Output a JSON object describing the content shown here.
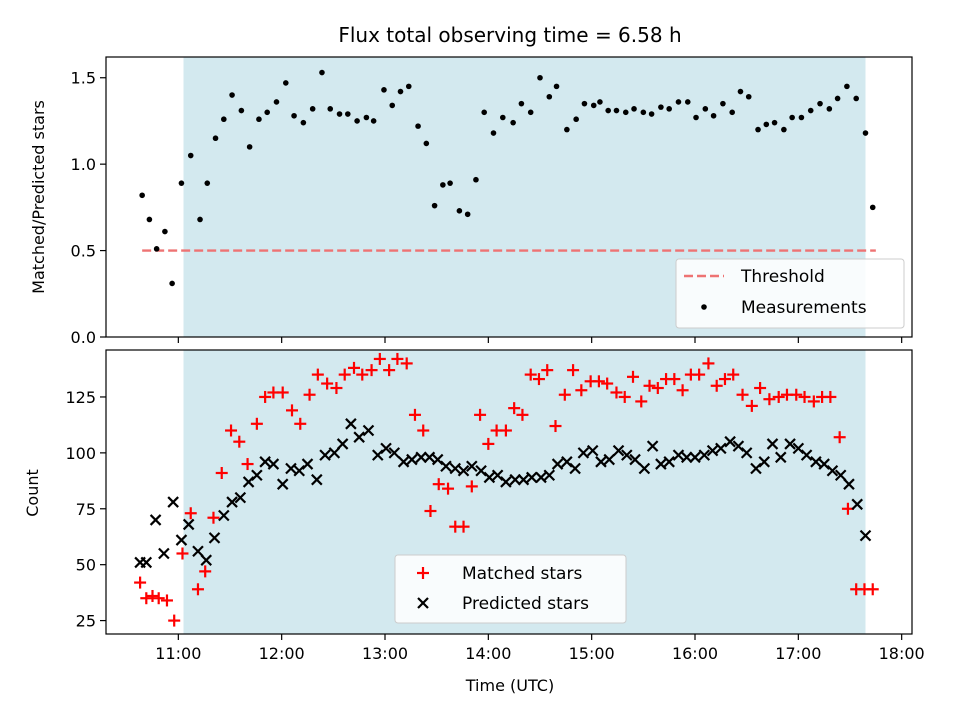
{
  "chart_data": [
    {
      "type": "scatter",
      "title": "Flux total observing time = 6.58 h",
      "xlabel": "",
      "ylabel": "Matched/Predicted stars",
      "x_unit": "hours UTC",
      "xlim": [
        10.3,
        18.1
      ],
      "ylim": [
        0,
        1.62
      ],
      "yticks": [
        0.0,
        0.5,
        1.0,
        1.5
      ],
      "ytick_labels": [
        "0.0",
        "0.5",
        "1.0",
        "1.5"
      ],
      "shaded_span": [
        11.05,
        17.65
      ],
      "shade_color": "#d3e9ef",
      "threshold": {
        "name": "Threshold",
        "y": 0.5,
        "x_range": [
          10.65,
          17.75
        ],
        "color": "#ee7373",
        "style": "dashed"
      },
      "legend": {
        "position": "lower-right",
        "entries": [
          "Threshold",
          "Measurements"
        ]
      },
      "series": [
        {
          "name": "Measurements",
          "marker": "dot",
          "color": "#000000",
          "x": [
            10.65,
            10.72,
            10.79,
            10.87,
            10.94,
            11.03,
            11.12,
            11.21,
            11.28,
            11.36,
            11.44,
            11.52,
            11.61,
            11.69,
            11.78,
            11.86,
            11.95,
            12.04,
            12.12,
            12.21,
            12.3,
            12.39,
            12.47,
            12.56,
            12.64,
            12.73,
            12.82,
            12.89,
            12.99,
            13.07,
            13.15,
            13.23,
            13.32,
            13.4,
            13.48,
            13.56,
            13.63,
            13.72,
            13.8,
            13.88,
            13.96,
            14.05,
            14.14,
            14.24,
            14.32,
            14.41,
            14.5,
            14.59,
            14.66,
            14.76,
            14.85,
            14.93,
            15.02,
            15.08,
            15.16,
            15.24,
            15.33,
            15.41,
            15.5,
            15.58,
            15.67,
            15.75,
            15.84,
            15.93,
            16.01,
            16.1,
            16.18,
            16.27,
            16.36,
            16.44,
            16.52,
            16.61,
            16.69,
            16.77,
            16.86,
            16.94,
            17.03,
            17.12,
            17.21,
            17.3,
            17.38,
            17.47,
            17.56,
            17.65,
            17.72
          ],
          "y": [
            0.82,
            0.68,
            0.51,
            0.61,
            0.31,
            0.89,
            1.05,
            0.68,
            0.89,
            1.15,
            1.26,
            1.4,
            1.31,
            1.1,
            1.26,
            1.3,
            1.36,
            1.47,
            1.28,
            1.24,
            1.32,
            1.53,
            1.32,
            1.29,
            1.29,
            1.25,
            1.27,
            1.25,
            1.43,
            1.34,
            1.42,
            1.45,
            1.22,
            1.12,
            0.76,
            0.88,
            0.89,
            0.73,
            0.71,
            0.91,
            1.3,
            1.18,
            1.27,
            1.24,
            1.35,
            1.3,
            1.5,
            1.39,
            1.45,
            1.2,
            1.26,
            1.35,
            1.34,
            1.36,
            1.31,
            1.31,
            1.3,
            1.32,
            1.3,
            1.29,
            1.33,
            1.32,
            1.36,
            1.36,
            1.27,
            1.32,
            1.28,
            1.35,
            1.3,
            1.42,
            1.39,
            1.2,
            1.23,
            1.24,
            1.2,
            1.27,
            1.27,
            1.31,
            1.35,
            1.32,
            1.38,
            1.45,
            1.38,
            1.18,
            0.75
          ]
        }
      ]
    },
    {
      "type": "scatter",
      "title": "",
      "xlabel": "Time (UTC)",
      "ylabel": "Count",
      "x_unit": "hours UTC",
      "xlim": [
        10.3,
        18.1
      ],
      "ylim": [
        19,
        146
      ],
      "yticks": [
        25,
        50,
        75,
        100,
        125
      ],
      "ytick_labels": [
        "25",
        "50",
        "75",
        "100",
        "125"
      ],
      "xticks": [
        11,
        12,
        13,
        14,
        15,
        16,
        17,
        18
      ],
      "xtick_labels": [
        "11:00",
        "12:00",
        "13:00",
        "14:00",
        "15:00",
        "16:00",
        "17:00",
        "18:00"
      ],
      "shaded_span": [
        11.05,
        17.65
      ],
      "shade_color": "#d3e9ef",
      "legend": {
        "position": "lower-center",
        "entries": [
          "Matched stars",
          "Predicted stars"
        ]
      },
      "series": [
        {
          "name": "Matched stars",
          "marker": "plus",
          "color": "#ff0000",
          "x": [
            10.63,
            10.69,
            10.75,
            10.81,
            10.89,
            10.96,
            11.04,
            11.12,
            11.19,
            11.26,
            11.34,
            11.42,
            11.51,
            11.59,
            11.67,
            11.76,
            11.84,
            11.92,
            12.01,
            12.1,
            12.18,
            12.27,
            12.35,
            12.44,
            12.53,
            12.61,
            12.7,
            12.78,
            12.87,
            12.95,
            13.04,
            13.12,
            13.21,
            13.29,
            13.37,
            13.44,
            13.52,
            13.61,
            13.68,
            13.76,
            13.84,
            13.92,
            14.0,
            14.08,
            14.17,
            14.25,
            14.33,
            14.41,
            14.49,
            14.57,
            14.65,
            14.74,
            14.82,
            14.9,
            14.99,
            15.07,
            15.15,
            15.24,
            15.32,
            15.4,
            15.48,
            15.56,
            15.64,
            15.72,
            15.8,
            15.88,
            15.96,
            16.04,
            16.13,
            16.21,
            16.29,
            16.37,
            16.46,
            16.55,
            16.63,
            16.72,
            16.81,
            16.89,
            16.98,
            17.06,
            17.15,
            17.23,
            17.31,
            17.4,
            17.48,
            17.56,
            17.64,
            17.72
          ],
          "y": [
            42,
            35,
            36,
            35,
            34,
            25,
            55,
            73,
            39,
            47,
            71,
            91,
            110,
            105,
            95,
            113,
            125,
            127,
            127,
            119,
            113,
            126,
            135,
            131,
            129,
            135,
            138,
            135,
            137,
            142,
            137,
            142,
            140,
            117,
            110,
            74,
            86,
            84,
            67,
            67,
            85,
            117,
            104,
            110,
            110,
            120,
            117,
            135,
            133,
            137,
            112,
            126,
            137,
            128,
            132,
            132,
            131,
            127,
            125,
            134,
            123,
            130,
            129,
            133,
            133,
            128,
            135,
            135,
            140,
            130,
            133,
            135,
            126,
            121,
            129,
            124,
            125,
            126,
            126,
            125,
            123,
            125,
            125,
            107,
            75,
            39,
            39,
            39
          ],
          "x_trim": 17.72
        },
        {
          "name": "Predicted stars",
          "marker": "x",
          "color": "#000000",
          "x": [
            10.63,
            10.69,
            10.78,
            10.86,
            10.95,
            11.03,
            11.1,
            11.19,
            11.27,
            11.35,
            11.44,
            11.52,
            11.6,
            11.68,
            11.76,
            11.84,
            11.92,
            12.01,
            12.09,
            12.17,
            12.25,
            12.34,
            12.42,
            12.51,
            12.59,
            12.67,
            12.75,
            12.84,
            12.93,
            13.01,
            13.09,
            13.18,
            13.26,
            13.35,
            13.43,
            13.51,
            13.59,
            13.68,
            13.76,
            13.84,
            13.93,
            14.01,
            14.09,
            14.17,
            14.26,
            14.34,
            14.42,
            14.51,
            14.59,
            14.67,
            14.76,
            14.84,
            14.92,
            15.01,
            15.09,
            15.17,
            15.26,
            15.34,
            15.42,
            15.51,
            15.59,
            15.67,
            15.75,
            15.84,
            15.92,
            16.0,
            16.09,
            16.17,
            16.25,
            16.34,
            16.42,
            16.5,
            16.59,
            16.67,
            16.75,
            16.83,
            16.92,
            17.0,
            17.08,
            17.17,
            17.25,
            17.33,
            17.41,
            17.49,
            17.57,
            17.65
          ],
          "y": [
            51,
            51,
            70,
            55,
            78,
            61,
            68,
            56,
            52,
            62,
            72,
            78,
            80,
            87,
            90,
            96,
            95,
            86,
            93,
            92,
            95,
            88,
            99,
            100,
            104,
            113,
            107,
            110,
            99,
            102,
            100,
            96,
            97,
            98,
            98,
            97,
            94,
            93,
            92,
            94,
            92,
            89,
            90,
            87,
            88,
            88,
            89,
            89,
            90,
            95,
            96,
            93,
            100,
            101,
            96,
            97,
            101,
            99,
            97,
            93,
            103,
            95,
            96,
            99,
            98,
            98,
            99,
            101,
            102,
            105,
            103,
            100,
            93,
            96,
            104,
            98,
            104,
            102,
            99,
            96,
            95,
            92,
            90,
            86,
            77,
            63
          ]
        }
      ]
    }
  ]
}
